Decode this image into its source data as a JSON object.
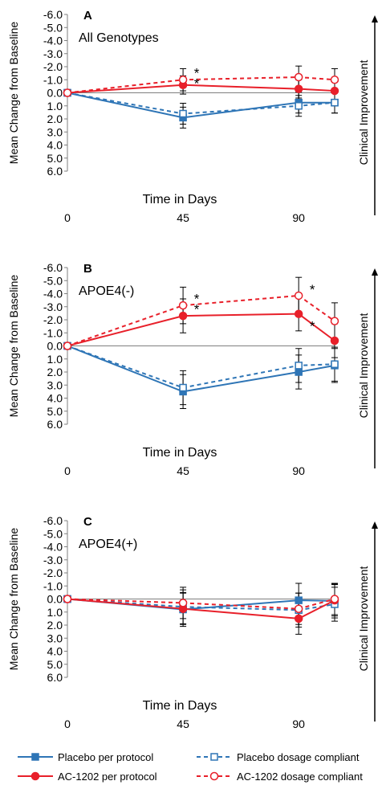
{
  "figure": {
    "xlabel": "Time in Days",
    "ylabel": "Mean Change from Baseline",
    "side_label": "Clinical Improvement"
  },
  "colors": {
    "placebo": "#2e75b6",
    "ac1202": "#e8202a",
    "axis": "#7f7f7f",
    "error_bar": "#000000"
  },
  "legend": [
    {
      "name": "Placebo per protocol",
      "color": "#2e75b6",
      "dash": false,
      "marker": "filled-square"
    },
    {
      "name": "Placebo dosage compliant",
      "color": "#2e75b6",
      "dash": true,
      "marker": "open-square"
    },
    {
      "name": "AC-1202 per protocol",
      "color": "#e8202a",
      "dash": false,
      "marker": "filled-circle"
    },
    {
      "name": "AC-1202 dosage compliant",
      "color": "#e8202a",
      "dash": true,
      "marker": "open-circle"
    }
  ],
  "chart_data": [
    {
      "type": "line",
      "panel_letter": "A",
      "subtitle": "All Genotypes",
      "xlabel": "Time in Days",
      "ylabel": "Mean Change from Baseline",
      "x_ticks": [
        "0",
        "45",
        "90"
      ],
      "y_ticks": [
        "-6.0",
        "-5.0",
        "-4.0",
        "-3.0",
        "-2.0",
        "-1.0",
        "0.0",
        "1.0",
        "2.0",
        "3.0",
        "4.0",
        "5.0",
        "6.0"
      ],
      "ylim": [
        -6,
        6
      ],
      "y_inverted": true,
      "x": [
        0,
        45,
        90,
        104
      ],
      "series": [
        {
          "name": "Placebo per protocol",
          "values": [
            0,
            1.9,
            0.75,
            0.75
          ],
          "err": [
            0,
            0.8,
            0.8,
            0.8
          ]
        },
        {
          "name": "Placebo dosage compliant",
          "values": [
            0,
            1.6,
            1.0,
            0.75
          ],
          "err": [
            0,
            0.8,
            0.8,
            0.8
          ]
        },
        {
          "name": "AC-1202 per protocol",
          "values": [
            0,
            -0.6,
            -0.3,
            -0.15
          ],
          "err": [
            0,
            0.7,
            0.7,
            0.7
          ]
        },
        {
          "name": "AC-1202 dosage compliant",
          "values": [
            0,
            -1.0,
            -1.2,
            -1.0
          ],
          "err": [
            0,
            0.85,
            0.85,
            0.85
          ]
        }
      ],
      "significance": [
        {
          "x": 45,
          "y": -1.6,
          "label": "*"
        },
        {
          "x": 45,
          "y": -0.8,
          "label": "*"
        }
      ]
    },
    {
      "type": "line",
      "panel_letter": "B",
      "subtitle": "APOE4(-)",
      "xlabel": "Time in Days",
      "ylabel": "Mean Change from Baseline",
      "x_ticks": [
        "0",
        "45",
        "90"
      ],
      "y_ticks": [
        "-6.0",
        "-5.0",
        "-4.0",
        "-3.0",
        "-2.0",
        "-1.0",
        "0.0",
        "1.0",
        "2.0",
        "3.0",
        "4.0",
        "5.0",
        "6.0"
      ],
      "ylim": [
        -6,
        6
      ],
      "y_inverted": true,
      "x": [
        0,
        45,
        90,
        104
      ],
      "series": [
        {
          "name": "Placebo per protocol",
          "values": [
            0,
            3.5,
            2.0,
            1.5
          ],
          "err": [
            0,
            1.3,
            1.3,
            1.3
          ]
        },
        {
          "name": "Placebo dosage compliant",
          "values": [
            0,
            3.2,
            1.5,
            1.4
          ],
          "err": [
            0,
            1.3,
            1.3,
            1.3
          ]
        },
        {
          "name": "AC-1202 per protocol",
          "values": [
            0,
            -2.3,
            -2.45,
            -0.4
          ],
          "err": [
            0,
            1.3,
            1.3,
            1.3
          ]
        },
        {
          "name": "AC-1202 dosage compliant",
          "values": [
            0,
            -3.1,
            -3.85,
            -1.9
          ],
          "err": [
            0,
            1.4,
            1.4,
            1.4
          ]
        }
      ],
      "significance": [
        {
          "x": 45,
          "y": -3.7,
          "label": "*"
        },
        {
          "x": 45,
          "y": -2.9,
          "label": "*"
        },
        {
          "x": 90,
          "y": -4.4,
          "label": "*"
        },
        {
          "x": 90,
          "y": -1.6,
          "label": "*"
        }
      ]
    },
    {
      "type": "line",
      "panel_letter": "C",
      "subtitle": "APOE4(+)",
      "xlabel": "Time in Days",
      "ylabel": "Mean Change from Baseline",
      "x_ticks": [
        "0",
        "45",
        "90"
      ],
      "y_ticks": [
        "-6.0",
        "-5.0",
        "-4.0",
        "-3.0",
        "-2.0",
        "-1.0",
        "0.0",
        "1.0",
        "2.0",
        "3.0",
        "4.0",
        "5.0",
        "6.0"
      ],
      "ylim": [
        -6,
        6
      ],
      "y_inverted": true,
      "x": [
        0,
        45,
        90,
        104
      ],
      "series": [
        {
          "name": "Placebo per protocol",
          "values": [
            0,
            0.8,
            0.1,
            0.15
          ],
          "err": [
            0,
            1.3,
            1.3,
            1.3
          ]
        },
        {
          "name": "Placebo dosage compliant",
          "values": [
            0,
            0.6,
            0.85,
            0.4
          ],
          "err": [
            0,
            1.3,
            1.3,
            1.3
          ]
        },
        {
          "name": "AC-1202 per protocol",
          "values": [
            0,
            0.75,
            1.5,
            0.1
          ],
          "err": [
            0,
            1.2,
            1.2,
            1.2
          ]
        },
        {
          "name": "AC-1202 dosage compliant",
          "values": [
            0,
            0.3,
            0.75,
            0.0
          ],
          "err": [
            0,
            1.2,
            1.2,
            1.2
          ]
        }
      ],
      "significance": []
    }
  ]
}
